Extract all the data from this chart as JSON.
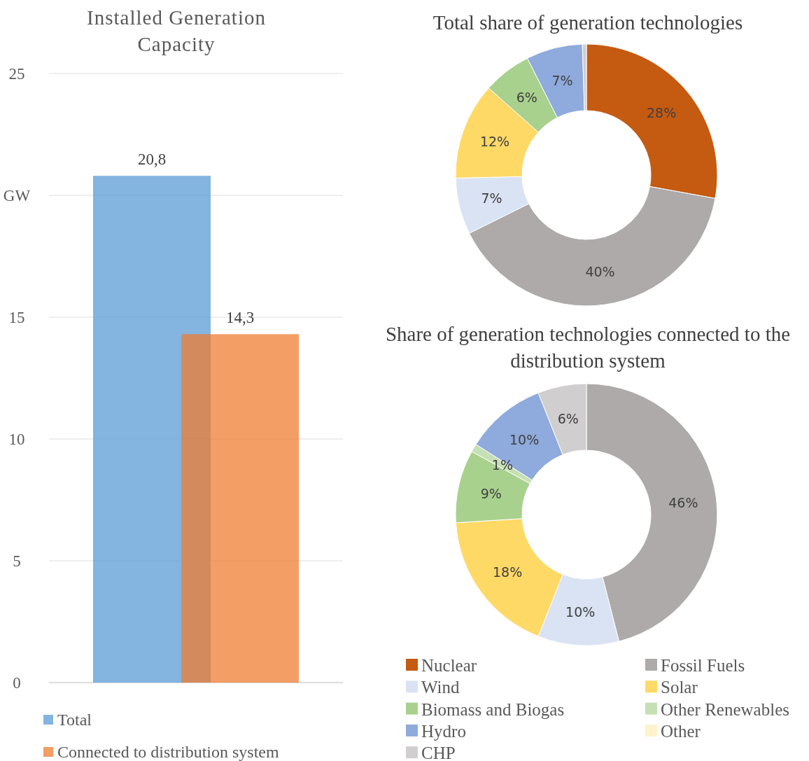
{
  "chart_data": [
    {
      "type": "bar",
      "title": "Installed Generation Capacity",
      "categories": [
        null
      ],
      "series": [
        {
          "name": "Total",
          "color": "#5b9bd5",
          "values": [
            20.8
          ],
          "value_labels": [
            "20,8"
          ]
        },
        {
          "name": "Connected to distribution system",
          "color": "#ed7d31",
          "values": [
            14.3
          ],
          "value_labels": [
            "14,3"
          ]
        }
      ],
      "ylim": [
        0,
        25
      ],
      "yticks": [
        0,
        5,
        10,
        15,
        {
          "value": 20,
          "label": "GW"
        },
        25
      ],
      "grid": "y",
      "legend": "bottom"
    },
    {
      "type": "donut",
      "title": "Total share of generation technologies",
      "categories": [
        null,
        null,
        null,
        null,
        null,
        null,
        null
      ],
      "values": [
        28,
        40,
        7,
        12,
        6,
        7,
        0.5
      ],
      "value_labels": [
        "28%",
        "40%",
        "7%",
        "12%",
        "6%",
        "7%",
        null
      ],
      "colors": [
        "#c55a11",
        "#aeaaaa",
        "#dae3f3",
        "#ffd966",
        "#a9d18e",
        "#8faadc",
        "#d0cece"
      ],
      "legend": false
    },
    {
      "type": "donut",
      "title": "Share of generation technologies connected to the distribution system",
      "categories": [
        "Nuclear",
        "Fossil Fuels",
        "Wind",
        "Solar",
        "Biomass and Biogas",
        "Other Renewables",
        "Hydro",
        "Other",
        "CHP"
      ],
      "values": [
        0,
        46,
        10,
        18,
        9,
        1,
        10,
        0,
        6
      ],
      "value_labels": [
        null,
        "46%",
        "10%",
        "18%",
        "9%",
        "1%",
        "10%",
        null,
        "6%"
      ],
      "colors": [
        "#c55a11",
        "#aeaaaa",
        "#dae3f3",
        "#ffd966",
        "#a9d18e",
        "#c5e0b4",
        "#8faadc",
        "#fff2cc",
        "#d0cece"
      ],
      "legend": "bottom"
    }
  ]
}
